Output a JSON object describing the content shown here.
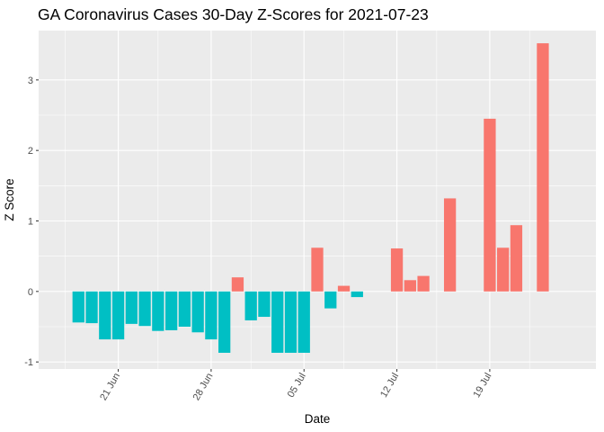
{
  "chart_data": {
    "type": "bar",
    "title": "GA Coronavirus Cases 30-Day Z-Scores for 2021-07-23",
    "xlabel": "Date",
    "ylabel": "Z Score",
    "x_range": [
      "2021-06-15",
      "2021-07-27"
    ],
    "ylim": [
      -1.1,
      3.7
    ],
    "y_ticks": [
      -1,
      0,
      1,
      2,
      3
    ],
    "x_ticks": [
      {
        "date": "2021-06-21",
        "label": "21 Jun"
      },
      {
        "date": "2021-06-28",
        "label": "28 Jun"
      },
      {
        "date": "2021-07-05",
        "label": "05 Jul"
      },
      {
        "date": "2021-07-12",
        "label": "12 Jul"
      },
      {
        "date": "2021-07-19",
        "label": "19 Jul"
      }
    ],
    "colors": {
      "positive": "#F8766D",
      "negative": "#00BFC4",
      "panel": "#EBEBEB",
      "grid": "#FFFFFF"
    },
    "grid": true,
    "legend": "none",
    "bars": [
      {
        "date": "2021-06-18",
        "z": -0.44
      },
      {
        "date": "2021-06-19",
        "z": -0.45
      },
      {
        "date": "2021-06-20",
        "z": -0.68
      },
      {
        "date": "2021-06-21",
        "z": -0.68
      },
      {
        "date": "2021-06-22",
        "z": -0.46
      },
      {
        "date": "2021-06-23",
        "z": -0.49
      },
      {
        "date": "2021-06-24",
        "z": -0.56
      },
      {
        "date": "2021-06-25",
        "z": -0.55
      },
      {
        "date": "2021-06-26",
        "z": -0.5
      },
      {
        "date": "2021-06-27",
        "z": -0.58
      },
      {
        "date": "2021-06-28",
        "z": -0.68
      },
      {
        "date": "2021-06-29",
        "z": -0.87
      },
      {
        "date": "2021-06-30",
        "z": 0.2
      },
      {
        "date": "2021-07-01",
        "z": -0.41
      },
      {
        "date": "2021-07-02",
        "z": -0.36
      },
      {
        "date": "2021-07-03",
        "z": -0.87
      },
      {
        "date": "2021-07-04",
        "z": -0.87
      },
      {
        "date": "2021-07-05",
        "z": -0.87
      },
      {
        "date": "2021-07-06",
        "z": 0.62
      },
      {
        "date": "2021-07-07",
        "z": -0.24
      },
      {
        "date": "2021-07-08",
        "z": 0.08
      },
      {
        "date": "2021-07-09",
        "z": -0.08
      },
      {
        "date": "2021-07-12",
        "z": 0.61
      },
      {
        "date": "2021-07-13",
        "z": 0.16
      },
      {
        "date": "2021-07-14",
        "z": 0.22
      },
      {
        "date": "2021-07-16",
        "z": 1.32
      },
      {
        "date": "2021-07-19",
        "z": 2.45
      },
      {
        "date": "2021-07-20",
        "z": 0.62
      },
      {
        "date": "2021-07-21",
        "z": 0.94
      },
      {
        "date": "2021-07-23",
        "z": 3.52
      }
    ]
  }
}
